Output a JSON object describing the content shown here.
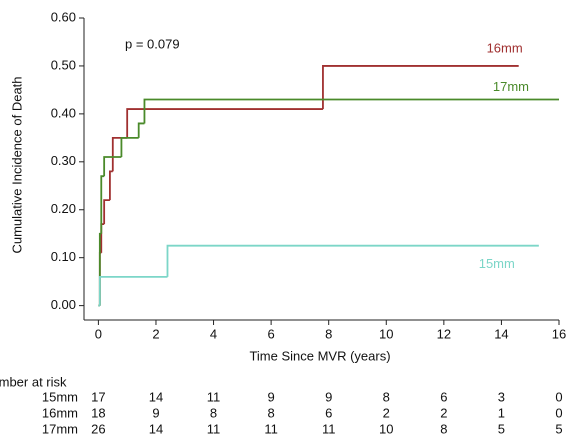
{
  "chart_data": {
    "type": "step",
    "annotation": "p = 0.079",
    "x_label": "Time Since MVR (years)",
    "y_label": "Cumulative Incidence of Death",
    "xlim": [
      -0.5,
      16
    ],
    "ylim": [
      -0.03,
      0.6
    ],
    "xticks": [
      0,
      2,
      4,
      6,
      8,
      10,
      12,
      14,
      16
    ],
    "yticks": [
      {
        "value": 0,
        "label": "0.00"
      },
      {
        "value": 0.1,
        "label": "0.10"
      },
      {
        "value": 0.2,
        "label": "0.20"
      },
      {
        "value": 0.3,
        "label": "0.30"
      },
      {
        "value": 0.4,
        "label": "0.40"
      },
      {
        "value": 0.5,
        "label": "0.50"
      },
      {
        "value": 0.6,
        "label": "0.60"
      }
    ],
    "series": [
      {
        "name": "16mm",
        "color": "#a03030",
        "x": [
          0,
          0.05,
          0.1,
          0.2,
          0.4,
          0.5,
          1.0,
          7.8,
          14.6
        ],
        "values": [
          0,
          0.11,
          0.17,
          0.22,
          0.28,
          0.35,
          0.41,
          0.5,
          0.5
        ]
      },
      {
        "name": "17mm",
        "color": "#4a8a2a",
        "x": [
          0,
          0.05,
          0.1,
          0.2,
          0.8,
          1.4,
          1.6,
          16
        ],
        "values": [
          0,
          0.15,
          0.27,
          0.31,
          0.35,
          0.38,
          0.43,
          0.43
        ]
      },
      {
        "name": "15mm",
        "color": "#7cd6c8",
        "x": [
          0,
          0.05,
          2.4,
          15.3
        ],
        "values": [
          0,
          0.06,
          0.125,
          0.125
        ]
      }
    ],
    "risk_table": {
      "title": "Number at risk",
      "rows": [
        {
          "label": "15mm",
          "counts": [
            17,
            14,
            11,
            9,
            9,
            8,
            6,
            3,
            0
          ]
        },
        {
          "label": "16mm",
          "counts": [
            18,
            9,
            8,
            8,
            6,
            2,
            2,
            1,
            0
          ]
        },
        {
          "label": "17mm",
          "counts": [
            26,
            14,
            11,
            11,
            11,
            10,
            8,
            5,
            5
          ]
        }
      ]
    }
  }
}
